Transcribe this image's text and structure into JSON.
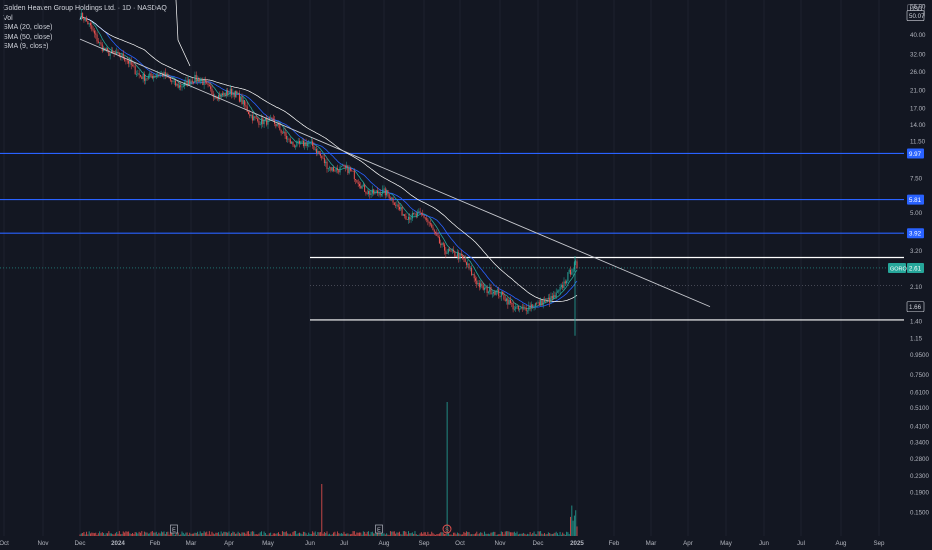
{
  "legend": {
    "title": "Golden Heaven Group Holdings Ltd. · 1D · NASDAQ",
    "vol": "Vol",
    "sma20": "SMA (20, close)",
    "sma50": "SMA (50, close)",
    "sma9": "SMA (9, close)"
  },
  "currency": "USD",
  "colors": {
    "background": "#131722",
    "up": "#26a69a",
    "down": "#ef5350",
    "axis_text": "#b2b5be",
    "level_blue": "#2962ff",
    "level_white": "#ffffff",
    "sma20": "#2962ff",
    "sma50": "#ffffff",
    "sma9": "#26a69a"
  },
  "chart_data": {
    "type": "candlestick",
    "y_scale": "log",
    "y_axis_labels": [
      "56.00",
      "50.07",
      "40.00",
      "32.00",
      "26.00",
      "21.00",
      "17.00",
      "14.00",
      "11.50",
      "9.97",
      "7.50",
      "5.81",
      "5.00",
      "3.92",
      "3.20",
      "2.61",
      "2.10",
      "1.66",
      "1.40",
      "1.15",
      "0.9500",
      "0.7500",
      "0.6100",
      "0.5100",
      "0.4100",
      "0.3400",
      "0.2800",
      "0.2300",
      "0.1900",
      "0.1500"
    ],
    "x_axis_labels": [
      "Oct",
      "Nov",
      "Dec",
      "2024",
      "Feb",
      "Mar",
      "Apr",
      "May",
      "Jun",
      "Jul",
      "Aug",
      "Sep",
      "Oct",
      "Nov",
      "Dec",
      "2025",
      "Feb",
      "Mar",
      "Apr",
      "May",
      "Jun",
      "Jul",
      "Aug",
      "Sep"
    ],
    "price_badges": [
      {
        "value": "50.07",
        "kind": "plain"
      },
      {
        "value": "9.97",
        "kind": "blue"
      },
      {
        "value": "5.81",
        "kind": "blue"
      },
      {
        "value": "3.92",
        "kind": "blue"
      },
      {
        "value": "2.61",
        "kind": "green",
        "prefix": "GORO"
      },
      {
        "value": "1.66",
        "kind": "plain"
      }
    ],
    "horizontal_levels": [
      {
        "price": 9.97,
        "color": "blue"
      },
      {
        "price": 5.81,
        "color": "blue"
      },
      {
        "price": 3.92,
        "color": "blue"
      },
      {
        "price": 2.95,
        "color": "white",
        "from": "Jun"
      },
      {
        "price": 1.42,
        "color": "white",
        "from": "Jun"
      }
    ],
    "trendline": {
      "from": {
        "date": "Dec 2023",
        "price": 38
      },
      "to": {
        "date": "Apr 2025",
        "price": 1.66
      }
    },
    "last_price": 2.61,
    "price_path": [
      {
        "date": "Dec 2023",
        "price": 48
      },
      {
        "date": "Jan 2024",
        "price": 30
      },
      {
        "date": "Feb 2024",
        "price": 24
      },
      {
        "date": "Mar 2024",
        "price": 23
      },
      {
        "date": "Apr 2024",
        "price": 20
      },
      {
        "date": "May 2024",
        "price": 14
      },
      {
        "date": "Jun 2024",
        "price": 10.5
      },
      {
        "date": "Jul 2024",
        "price": 8
      },
      {
        "date": "Aug 2024",
        "price": 6
      },
      {
        "date": "Sep 2024",
        "price": 4.5
      },
      {
        "date": "Oct 2024",
        "price": 2.8
      },
      {
        "date": "Nov 2024",
        "price": 1.8
      },
      {
        "date": "Dec 2024",
        "price": 1.6
      },
      {
        "date": "Jan 2025",
        "price": 2.61
      }
    ],
    "volume_markers": [
      "E",
      "E",
      "S"
    ]
  }
}
